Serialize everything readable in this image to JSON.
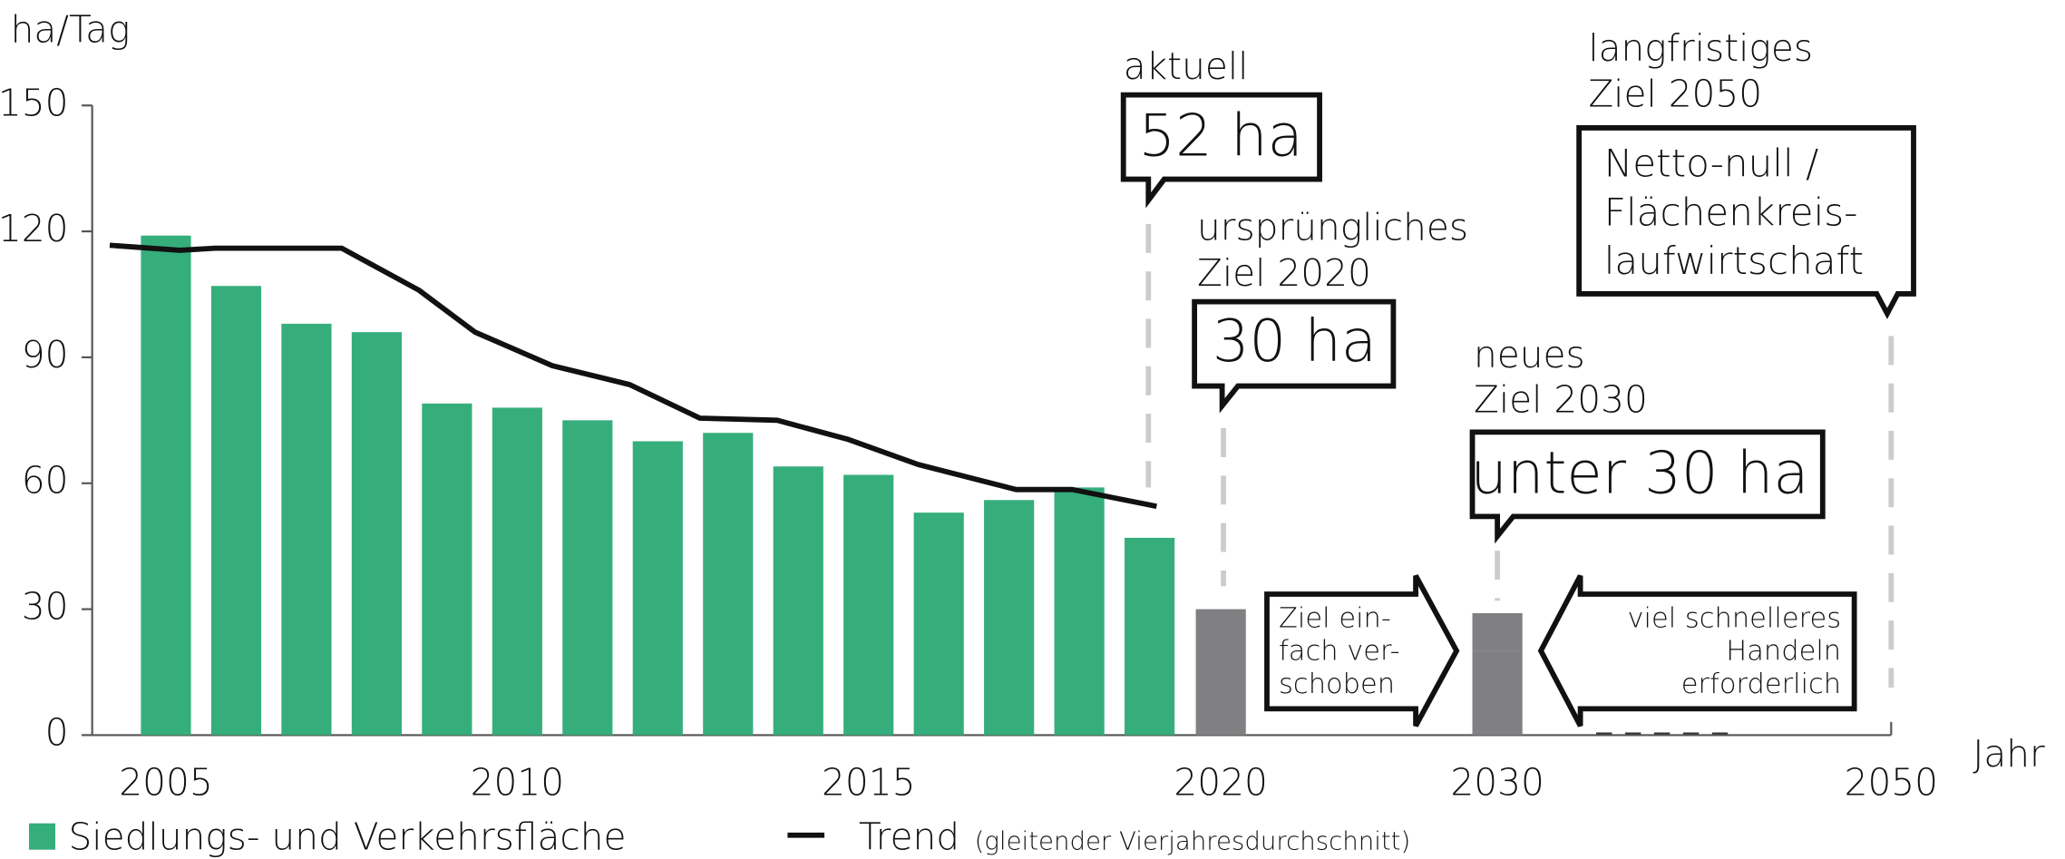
{
  "chart_data": {
    "type": "bar",
    "y_label": "ha/Tag",
    "x_label": "Jahr",
    "categories": [
      "2005",
      null,
      null,
      null,
      null,
      "2010",
      null,
      null,
      null,
      null,
      "2015",
      null,
      null,
      null,
      null,
      "2020",
      "2030",
      "2050"
    ],
    "ylim": [
      0,
      150
    ],
    "yticks": [
      0,
      30,
      60,
      90,
      120,
      150
    ],
    "series": [
      {
        "name": "Siedlungs- und Verkehrsfläche",
        "color": "#36ae7c",
        "values": [
          119,
          107,
          98,
          96,
          79,
          78,
          75,
          70,
          72,
          64,
          62,
          53,
          56,
          59,
          47,
          null,
          null,
          null
        ]
      },
      {
        "color": "#808083",
        "values": [
          null,
          null,
          null,
          null,
          null,
          null,
          null,
          null,
          null,
          null,
          null,
          null,
          null,
          null,
          null,
          30,
          20,
          null
        ]
      },
      {
        "color": "#808083",
        "values": [
          null,
          null,
          null,
          null,
          null,
          null,
          null,
          null,
          null,
          null,
          null,
          null,
          null,
          null,
          null,
          null,
          10,
          null
        ]
      }
    ],
    "trend": {
      "name": "Trend",
      "note": "(gleitender Vierjahresdurchschnitt)",
      "color": "#111111",
      "type": "line",
      "x": [
        2004.2,
        2005.2,
        2005.7,
        2007.5,
        2008.6,
        2009.4,
        2010.5,
        2011.6,
        2012.6,
        2013.7,
        2014.7,
        2015.7,
        2017.1,
        2017.9,
        2019.1
      ],
      "values": [
        116.7,
        115.5,
        116,
        116,
        106,
        96,
        88,
        83.5,
        75.5,
        75,
        70.5,
        64.5,
        58.5,
        58.5,
        54.5
      ]
    },
    "annotations": [
      {
        "label": [
          "aktuell"
        ],
        "text": [
          "52 ha"
        ]
      },
      {
        "label": [
          "ursprüngliches",
          "Ziel 2020"
        ],
        "text": [
          "30 ha"
        ]
      },
      {
        "label": [
          "neues",
          "Ziel 2030"
        ],
        "text": [
          "unter 30 ha"
        ]
      },
      {
        "label": [
          "langfristiges",
          "Ziel 2050"
        ],
        "text": [
          "Netto-null /",
          "Flächenkreis-",
          "laufwirtschaft"
        ]
      }
    ],
    "arrows": [
      {
        "text": [
          "Ziel ein-",
          "fach ver-",
          "schoben"
        ]
      },
      {
        "text": [
          "viel schnelleres",
          "Handeln",
          "erforderlich"
        ]
      }
    ]
  }
}
